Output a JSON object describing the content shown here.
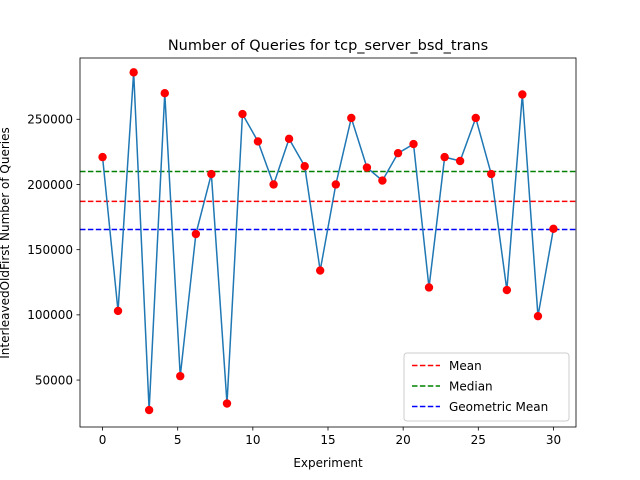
{
  "chart_data": {
    "type": "line",
    "title": "Number of Queries for tcp_server_bsd_trans",
    "xlabel": "Experiment",
    "ylabel": "InterleavedOldFirst Number of Queries",
    "xlim": [
      -1.5,
      31.5
    ],
    "ylim": [
      14000,
      297000
    ],
    "x_ticks": [
      0,
      5,
      10,
      15,
      20,
      25,
      30
    ],
    "y_ticks": [
      50000,
      100000,
      150000,
      200000,
      250000
    ],
    "x_tick_labels": [
      "0",
      "5",
      "10",
      "15",
      "20",
      "25",
      "30"
    ],
    "y_tick_labels": [
      "50000",
      "100000",
      "150000",
      "200000",
      "250000"
    ],
    "series": [
      {
        "name": "Queries",
        "line_color": "#1f77b4",
        "marker_color": "#ff0000",
        "x": [
          0,
          1.03,
          2.07,
          3.1,
          4.14,
          5.17,
          6.21,
          7.24,
          8.28,
          9.31,
          10.34,
          11.38,
          12.41,
          13.45,
          14.48,
          15.52,
          16.55,
          17.59,
          18.62,
          19.66,
          20.69,
          21.72,
          22.76,
          23.79,
          24.83,
          25.86,
          26.9,
          27.93,
          28.97,
          30
        ],
        "values": [
          221000,
          103000,
          286000,
          27000,
          270000,
          53000,
          162000,
          208000,
          32000,
          254000,
          233000,
          200000,
          235000,
          214000,
          134000,
          200000,
          251000,
          213000,
          203000,
          224000,
          231000,
          121000,
          221000,
          218000,
          251000,
          208000,
          119000,
          269000,
          99000,
          166000
        ]
      }
    ],
    "reference_lines": [
      {
        "name": "Mean",
        "value": 187000,
        "color": "#ff0000"
      },
      {
        "name": "Median",
        "value": 210000,
        "color": "#008000"
      },
      {
        "name": "Geometric Mean",
        "value": 165500,
        "color": "#0000ff"
      }
    ],
    "legend": {
      "position": "lower-right",
      "entries": [
        "Mean",
        "Median",
        "Geometric Mean"
      ]
    }
  }
}
